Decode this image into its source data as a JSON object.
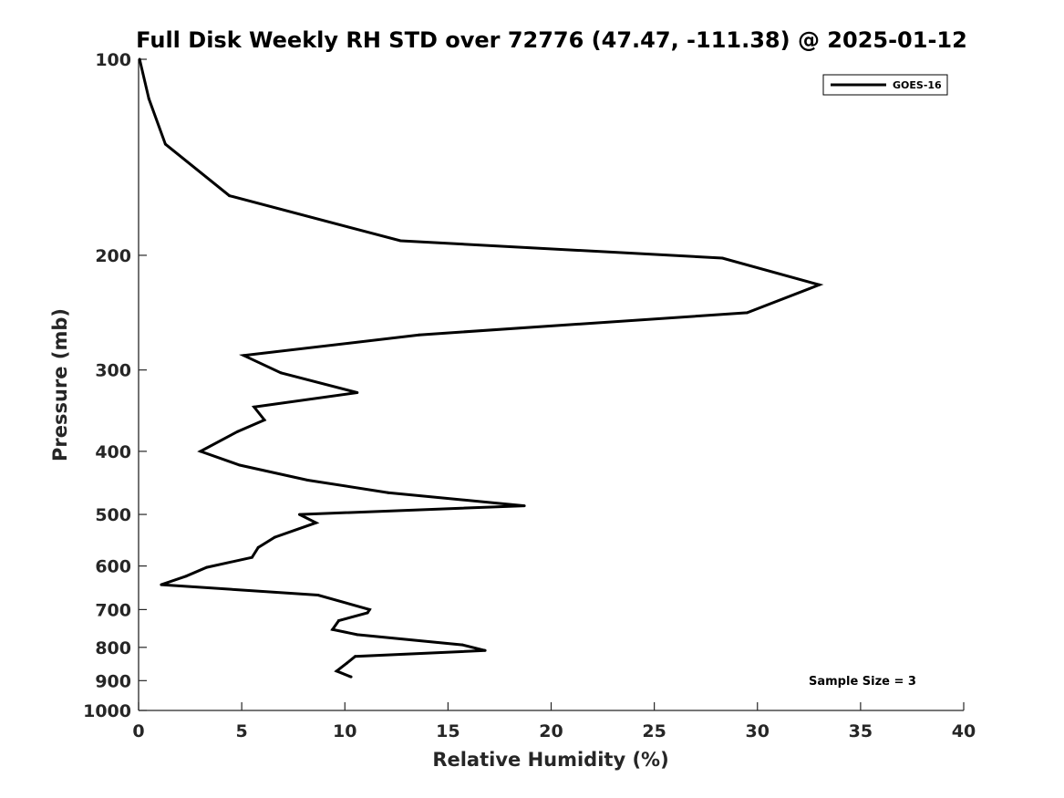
{
  "chart_data": {
    "type": "line",
    "title": "Full Disk Weekly RH STD over 72776 (47.47, -111.38) @ 2025-01-12",
    "xlabel": "Relative Humidity (%)",
    "ylabel": "Pressure (mb)",
    "xlim": [
      0,
      40
    ],
    "ylim": [
      100,
      1000
    ],
    "yscale": "log",
    "y_reversed": true,
    "x_ticks": [
      0,
      5,
      10,
      15,
      20,
      25,
      30,
      35,
      40
    ],
    "x_tick_labels": [
      "0",
      "5",
      "10",
      "15",
      "20",
      "25",
      "30",
      "35",
      "40"
    ],
    "y_ticks": [
      100,
      200,
      300,
      400,
      500,
      600,
      700,
      800,
      900,
      1000
    ],
    "y_tick_labels": [
      "100",
      "200",
      "300",
      "400",
      "500",
      "600",
      "700",
      "800",
      "900",
      "1000"
    ],
    "grid": false,
    "legend_position": "top-right",
    "annotation": "Sample Size = 3",
    "series": [
      {
        "name": "GOES-16",
        "color": "#000000",
        "x": [
          0.05,
          0.5,
          1.3,
          4.4,
          12.7,
          28.3,
          33.0,
          29.5,
          13.6,
          5.1,
          6.9,
          10.6,
          5.6,
          6.1,
          4.8,
          3.0,
          4.9,
          8.2,
          12.1,
          18.7,
          7.8,
          8.6,
          6.6,
          5.8,
          5.5,
          3.3,
          2.3,
          1.1,
          8.7,
          11.2,
          11.1,
          9.7,
          9.4,
          10.6,
          15.7,
          16.8,
          10.5,
          10.1,
          9.6,
          10.3
        ],
        "y": [
          100,
          115,
          135,
          162,
          190,
          202,
          222,
          245,
          265,
          285,
          303,
          325,
          342,
          358,
          373,
          400,
          420,
          443,
          463,
          485,
          500,
          515,
          542,
          562,
          582,
          603,
          622,
          641,
          665,
          700,
          708,
          728,
          751,
          765,
          793,
          809,
          826,
          846,
          870,
          888
        ]
      }
    ]
  }
}
